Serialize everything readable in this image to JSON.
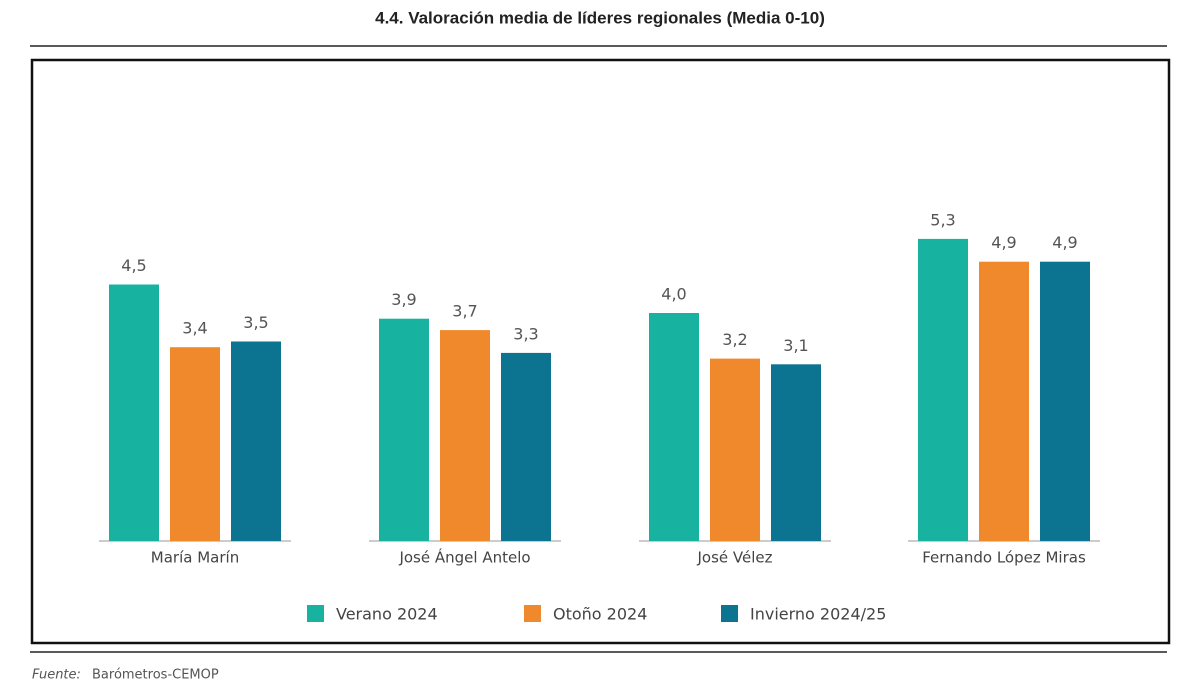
{
  "chart_data": {
    "type": "bar",
    "title": "4.4. Valoración media de líderes regionales (Media 0-10)",
    "categories": [
      "María Marín",
      "José Ángel Antelo",
      "José Vélez",
      "Fernando López Miras"
    ],
    "series": [
      {
        "name": "Verano 2024",
        "color": "#17b3a0",
        "values": [
          4.5,
          3.9,
          4.0,
          5.3
        ],
        "value_labels": [
          "4,5",
          "3,9",
          "4,0",
          "5,3"
        ]
      },
      {
        "name": "Otoño 2024",
        "color": "#f0892b",
        "values": [
          3.4,
          3.7,
          3.2,
          4.9
        ],
        "value_labels": [
          "3,4",
          "3,7",
          "3,2",
          "4,9"
        ]
      },
      {
        "name": "Invierno 2024/25",
        "color": "#0c7391",
        "values": [
          3.5,
          3.3,
          3.1,
          4.9
        ],
        "value_labels": [
          "3,5",
          "3,3",
          "3,1",
          "4,9"
        ]
      }
    ],
    "source_label": "Fuente:",
    "source": "Barómetros-CEMOP"
  }
}
